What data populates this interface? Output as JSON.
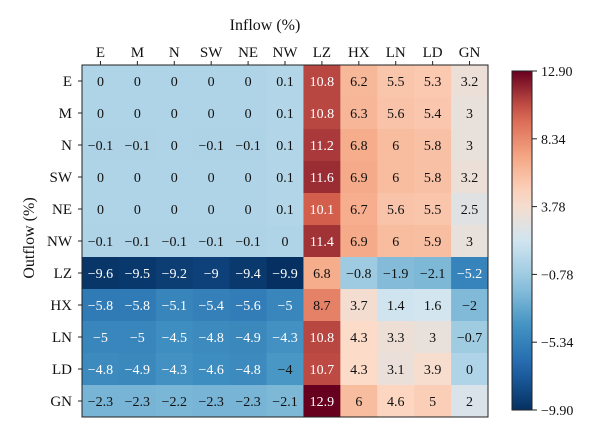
{
  "chart_data": {
    "type": "heatmap",
    "xlabel": "Inflow (%)",
    "ylabel": "Outflow (%)",
    "columns": [
      "E",
      "M",
      "N",
      "SW",
      "NE",
      "NW",
      "LZ",
      "HX",
      "LN",
      "LD",
      "GN"
    ],
    "rows": [
      "E",
      "M",
      "N",
      "SW",
      "NE",
      "NW",
      "LZ",
      "HX",
      "LN",
      "LD",
      "GN"
    ],
    "values": [
      [
        0,
        0,
        0,
        0,
        0,
        0.1,
        10.8,
        6.2,
        5.5,
        5.3,
        3.2
      ],
      [
        0,
        0,
        0,
        0,
        0,
        0.1,
        10.8,
        6.3,
        5.6,
        5.4,
        3
      ],
      [
        -0.1,
        -0.1,
        0,
        -0.1,
        -0.1,
        0.1,
        11.2,
        6.8,
        6,
        5.8,
        3
      ],
      [
        0,
        0,
        0,
        0,
        0,
        0.1,
        11.6,
        6.9,
        6,
        5.8,
        3.2
      ],
      [
        0,
        0,
        0,
        0,
        0,
        0.1,
        10.1,
        6.7,
        5.6,
        5.5,
        2.5
      ],
      [
        -0.1,
        -0.1,
        -0.1,
        -0.1,
        -0.1,
        0,
        11.4,
        6.9,
        6,
        5.9,
        3
      ],
      [
        -9.6,
        -9.5,
        -9.2,
        -9,
        -9.4,
        -9.9,
        6.8,
        -0.8,
        -1.9,
        -2.1,
        -5.2
      ],
      [
        -5.8,
        -5.8,
        -5.1,
        -5.4,
        -5.6,
        -5,
        8.7,
        3.7,
        1.4,
        1.6,
        -2
      ],
      [
        -5,
        -5,
        -4.5,
        -4.8,
        -4.9,
        -4.3,
        10.8,
        4.3,
        3.3,
        3,
        -0.7
      ],
      [
        -4.8,
        -4.9,
        -4.3,
        -4.6,
        -4.8,
        -4,
        10.7,
        4.3,
        3.1,
        3.9,
        0
      ],
      [
        -2.3,
        -2.3,
        -2.2,
        -2.3,
        -2.3,
        -2.1,
        12.9,
        6,
        4.6,
        5,
        2
      ]
    ],
    "cell_labels": [
      [
        "0",
        "0",
        "0",
        "0",
        "0",
        "0.1",
        "10.8",
        "6.2",
        "5.5",
        "5.3",
        "3.2"
      ],
      [
        "0",
        "0",
        "0",
        "0",
        "0",
        "0.1",
        "10.8",
        "6.3",
        "5.6",
        "5.4",
        "3"
      ],
      [
        "−0.1",
        "−0.1",
        "0",
        "−0.1",
        "−0.1",
        "0.1",
        "11.2",
        "6.8",
        "6",
        "5.8",
        "3"
      ],
      [
        "0",
        "0",
        "0",
        "0",
        "0",
        "0.1",
        "11.6",
        "6.9",
        "6",
        "5.8",
        "3.2"
      ],
      [
        "0",
        "0",
        "0",
        "0",
        "0",
        "0.1",
        "10.1",
        "6.7",
        "5.6",
        "5.5",
        "2.5"
      ],
      [
        "−0.1",
        "−0.1",
        "−0.1",
        "−0.1",
        "−0.1",
        "0",
        "11.4",
        "6.9",
        "6",
        "5.9",
        "3"
      ],
      [
        "−9.6",
        "−9.5",
        "−9.2",
        "−9",
        "−9.4",
        "−9.9",
        "6.8",
        "−0.8",
        "−1.9",
        "−2.1",
        "−5.2"
      ],
      [
        "−5.8",
        "−5.8",
        "−5.1",
        "−5.4",
        "−5.6",
        "−5",
        "8.7",
        "3.7",
        "1.4",
        "1.6",
        "−2"
      ],
      [
        "−5",
        "−5",
        "−4.5",
        "−4.8",
        "−4.9",
        "−4.3",
        "10.8",
        "4.3",
        "3.3",
        "3",
        "−0.7"
      ],
      [
        "−4.8",
        "−4.9",
        "−4.3",
        "−4.6",
        "−4.8",
        "−4",
        "10.7",
        "4.3",
        "3.1",
        "3.9",
        "0"
      ],
      [
        "−2.3",
        "−2.3",
        "−2.2",
        "−2.3",
        "−2.3",
        "−2.1",
        "12.9",
        "6",
        "4.6",
        "5",
        "2"
      ]
    ],
    "colorbar": {
      "min": -9.9,
      "max": 12.9,
      "ticks": [
        12.9,
        8.34,
        3.78,
        -0.78,
        -5.34,
        -9.9
      ],
      "tick_labels": [
        "12.90",
        "8.34",
        "3.78",
        "−0.78",
        "−5.34",
        "−9.90"
      ],
      "colormap": "RdBu_r"
    }
  }
}
